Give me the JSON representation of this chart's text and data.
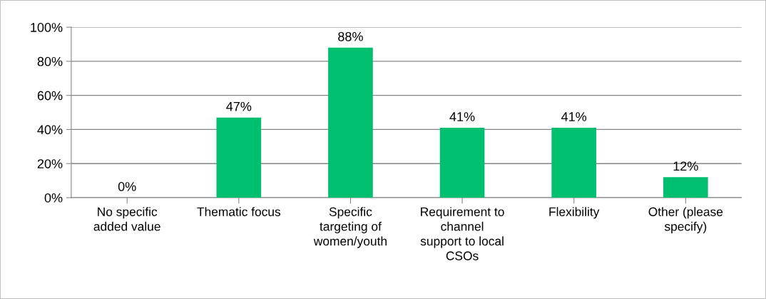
{
  "chart_data": {
    "type": "bar",
    "categories": [
      "No specific\nadded value",
      "Thematic focus",
      "Specific\ntargeting of\nwomen/youth",
      "Requirement to\nchannel\nsupport to local\nCSOs",
      "Flexibility",
      "Other (please\nspecify)"
    ],
    "values": [
      0,
      47,
      88,
      41,
      41,
      12
    ],
    "color": "#00c070",
    "value_labels": [
      "0%",
      "47%",
      "88%",
      "41%",
      "41%",
      "12%"
    ],
    "ylim": [
      0,
      100
    ],
    "yticks": [
      {
        "value": 0,
        "label": "0%"
      },
      {
        "value": 20,
        "label": "20%"
      },
      {
        "value": 40,
        "label": "40%"
      },
      {
        "value": 60,
        "label": "60%"
      },
      {
        "value": 80,
        "label": "80%"
      },
      {
        "value": 100,
        "label": "100%"
      }
    ],
    "grid": "y",
    "legend": false
  }
}
